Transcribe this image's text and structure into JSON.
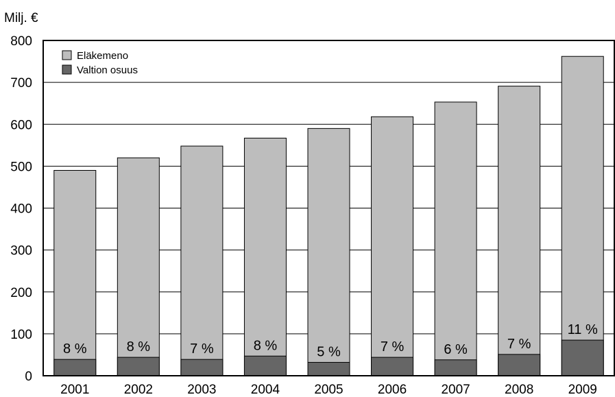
{
  "chart_data": {
    "type": "bar",
    "stacked": true,
    "ylabel": "Milj. €",
    "ylim": [
      0,
      800
    ],
    "yticks": [
      0,
      100,
      200,
      300,
      400,
      500,
      600,
      700,
      800
    ],
    "grid": true,
    "legend": "top-left",
    "categories": [
      "2001",
      "2002",
      "2003",
      "2004",
      "2005",
      "2006",
      "2007",
      "2008",
      "2009"
    ],
    "series": [
      {
        "name": "Eläkemeno",
        "values": [
          490,
          520,
          548,
          567,
          590,
          618,
          653,
          691,
          762
        ],
        "color": "#bdbdbd"
      },
      {
        "name": "Valtion osuus",
        "values": [
          39,
          44,
          39,
          47,
          32,
          44,
          38,
          51,
          85
        ],
        "color": "#666666"
      }
    ],
    "annotations": [
      "8 %",
      "8 %",
      "7 %",
      "8 %",
      "5 %",
      "7 %",
      "6 %",
      "7 %",
      "11 %"
    ]
  }
}
